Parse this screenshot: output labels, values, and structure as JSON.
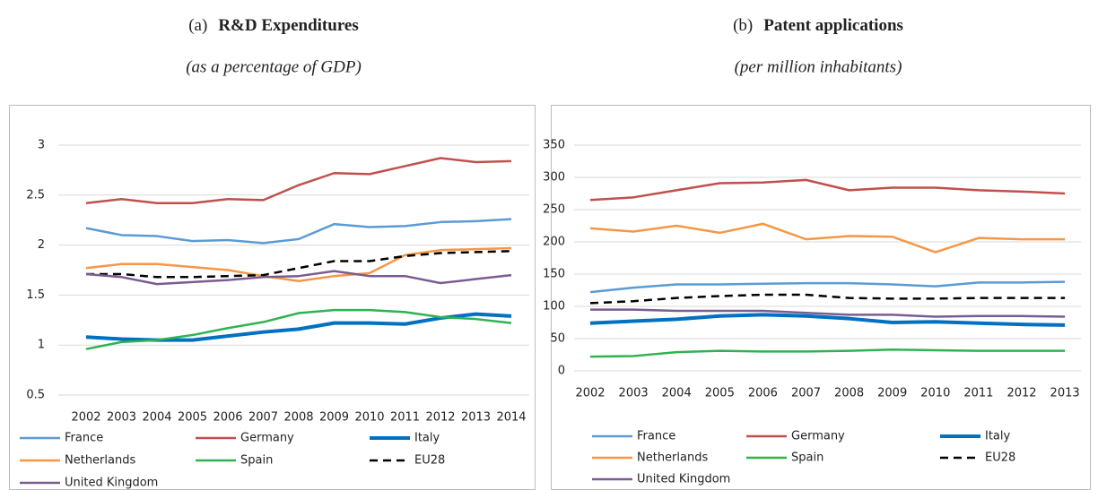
{
  "chart_data": [
    {
      "type": "line",
      "panel_label": "(a)",
      "title": "R&D Expenditures",
      "subtitle": "(as a percentage of GDP)",
      "categories": [
        "2002",
        "2003",
        "2004",
        "2005",
        "2006",
        "2007",
        "2008",
        "2009",
        "2010",
        "2011",
        "2012",
        "2013",
        "2014"
      ],
      "ylim": [
        0.5,
        3
      ],
      "yticks": [
        0.5,
        1,
        1.5,
        2,
        2.5,
        3
      ],
      "grid": true,
      "series": [
        {
          "name": "France",
          "color": "#5b9bd5",
          "values": [
            2.17,
            2.1,
            2.09,
            2.04,
            2.05,
            2.02,
            2.06,
            2.21,
            2.18,
            2.19,
            2.23,
            2.24,
            2.26
          ]
        },
        {
          "name": "Germany",
          "color": "#c0504d",
          "values": [
            2.42,
            2.46,
            2.42,
            2.42,
            2.46,
            2.45,
            2.6,
            2.72,
            2.71,
            2.79,
            2.87,
            2.83,
            2.84
          ]
        },
        {
          "name": "Italy",
          "color": "#0070c0",
          "line_width": 4,
          "values": [
            1.08,
            1.06,
            1.05,
            1.05,
            1.09,
            1.13,
            1.16,
            1.22,
            1.22,
            1.21,
            1.27,
            1.31,
            1.29
          ]
        },
        {
          "name": "Netherlands",
          "color": "#f79646",
          "values": [
            1.77,
            1.81,
            1.81,
            1.78,
            1.75,
            1.69,
            1.64,
            1.69,
            1.72,
            1.9,
            1.95,
            1.96,
            1.97
          ]
        },
        {
          "name": "Spain",
          "color": "#2fb350",
          "values": [
            0.96,
            1.03,
            1.05,
            1.1,
            1.17,
            1.23,
            1.32,
            1.35,
            1.35,
            1.33,
            1.28,
            1.26,
            1.22
          ]
        },
        {
          "name": "EU28",
          "color": "#000000",
          "dashed": true,
          "values": [
            1.71,
            1.71,
            1.68,
            1.68,
            1.69,
            1.7,
            1.77,
            1.84,
            1.84,
            1.89,
            1.92,
            1.93,
            1.94
          ]
        },
        {
          "name": "United Kingdom",
          "color": "#7a5c91",
          "values": [
            1.71,
            1.68,
            1.61,
            1.63,
            1.65,
            1.68,
            1.69,
            1.74,
            1.69,
            1.69,
            1.62,
            1.66,
            1.7
          ]
        }
      ]
    },
    {
      "type": "line",
      "panel_label": "(b)",
      "title": "Patent applications",
      "subtitle": "(per million inhabitants)",
      "categories": [
        "2002",
        "2003",
        "2004",
        "2005",
        "2006",
        "2007",
        "2008",
        "2009",
        "2010",
        "2011",
        "2012",
        "2013"
      ],
      "ylim": [
        0,
        350
      ],
      "yticks": [
        0,
        50,
        100,
        150,
        200,
        250,
        300,
        350
      ],
      "grid": true,
      "series": [
        {
          "name": "France",
          "color": "#5b9bd5",
          "values": [
            122,
            129,
            134,
            134,
            135,
            136,
            136,
            134,
            131,
            137,
            137,
            138
          ]
        },
        {
          "name": "Germany",
          "color": "#c0504d",
          "values": [
            265,
            269,
            280,
            291,
            292,
            296,
            280,
            284,
            284,
            280,
            278,
            275
          ]
        },
        {
          "name": "Italy",
          "color": "#0070c0",
          "line_width": 4,
          "values": [
            74,
            77,
            80,
            85,
            87,
            85,
            81,
            75,
            76,
            74,
            72,
            71
          ]
        },
        {
          "name": "Netherlands",
          "color": "#f79646",
          "values": [
            221,
            216,
            225,
            214,
            228,
            204,
            209,
            208,
            184,
            206,
            204,
            204
          ]
        },
        {
          "name": "Spain",
          "color": "#2fb350",
          "values": [
            22,
            23,
            29,
            31,
            30,
            30,
            31,
            33,
            32,
            31,
            31,
            31
          ]
        },
        {
          "name": "EU28",
          "color": "#000000",
          "dashed": true,
          "values": [
            105,
            108,
            113,
            116,
            118,
            118,
            113,
            112,
            112,
            113,
            113,
            113
          ]
        },
        {
          "name": "United Kingdom",
          "color": "#7a5c91",
          "values": [
            95,
            95,
            93,
            93,
            93,
            90,
            87,
            87,
            84,
            85,
            85,
            84
          ]
        }
      ]
    }
  ]
}
